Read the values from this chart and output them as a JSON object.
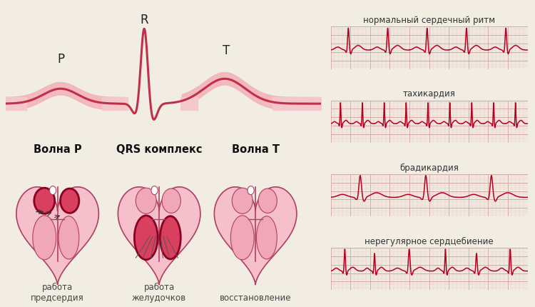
{
  "bg_color": "#f2ede3",
  "ecg_color": "#b5001f",
  "grid_color": "#e8c8c8",
  "grid_major_color": "#d4a8a8",
  "panel_bg": "#ede8e8",
  "panel_edge": "#ccb0b0",
  "labels": [
    "нормальный сердечный ритм",
    "тахикардия",
    "брадикардия",
    "нерегулярное сердцебиение"
  ],
  "wave_labels": [
    "Волна P",
    "QRS комплекс",
    "Волна T"
  ],
  "wave_sublabels": [
    "работа\nпредсердия",
    "работа\nжелудочков",
    "восстановление"
  ],
  "ribbon_light": "#f2b0b8",
  "ribbon_dark": "#c0304a",
  "ribbon_flat": "#f5c8cc",
  "label_fontsize": 8.5,
  "wave_label_fontsize": 10.5
}
